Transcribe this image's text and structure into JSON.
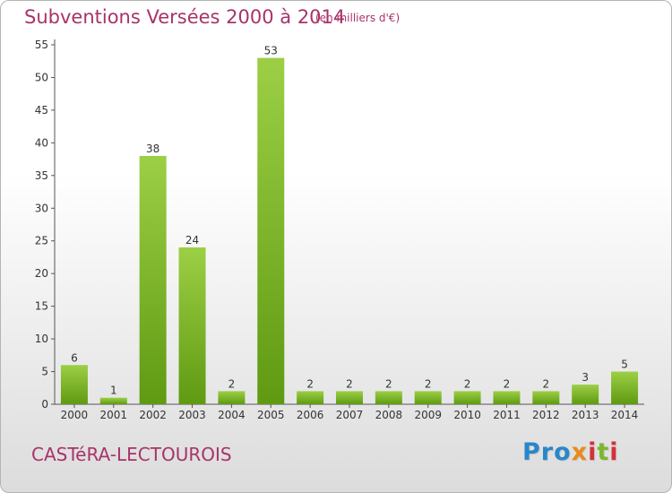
{
  "header": {
    "title": "Subventions Versées 2000 à 2014",
    "unit_note": "(en milliers d'€)"
  },
  "footer": {
    "commune": "CASTéRA-LECTOUROIS",
    "logo_parts": [
      "Pro",
      "x",
      "i",
      "t",
      "i"
    ]
  },
  "colors": {
    "bar_light": "#9ccf45",
    "bar_dark": "#5f9a12",
    "title": "#a8336a",
    "axis": "#555555"
  },
  "chart_data": {
    "type": "bar",
    "title": "Subventions Versées 2000 à 2014",
    "subtitle": "(en milliers d'€)",
    "xlabel": "",
    "ylabel": "",
    "ylim": [
      0,
      55
    ],
    "yticks": [
      0,
      5,
      10,
      15,
      20,
      25,
      30,
      35,
      40,
      45,
      50,
      55
    ],
    "grid": false,
    "categories": [
      "2000",
      "2001",
      "2002",
      "2003",
      "2004",
      "2005",
      "2006",
      "2007",
      "2008",
      "2009",
      "2010",
      "2011",
      "2012",
      "2013",
      "2014"
    ],
    "values": [
      6,
      1,
      38,
      24,
      2,
      53,
      2,
      2,
      2,
      2,
      2,
      2,
      2,
      3,
      5
    ]
  }
}
